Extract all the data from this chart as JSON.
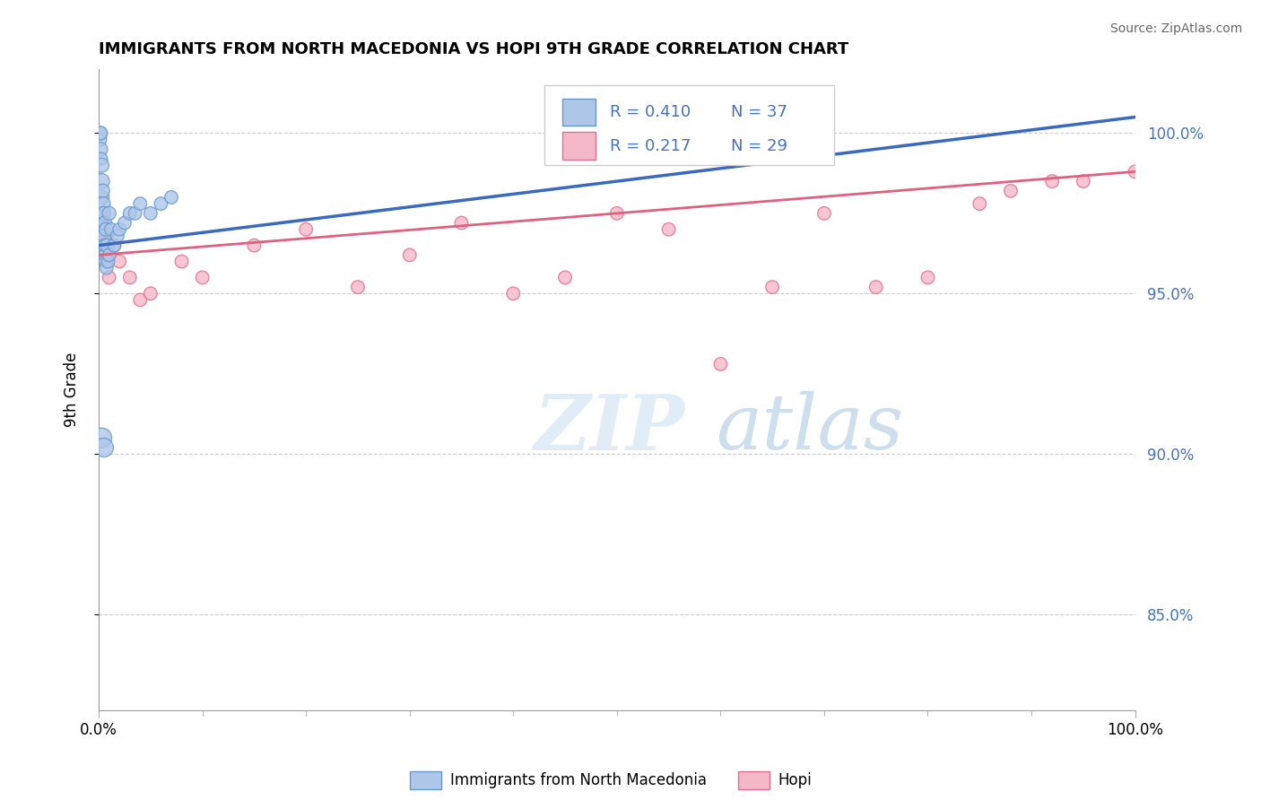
{
  "title": "IMMIGRANTS FROM NORTH MACEDONIA VS HOPI 9TH GRADE CORRELATION CHART",
  "source": "Source: ZipAtlas.com",
  "ylabel": "9th Grade",
  "watermark_zip": "ZIP",
  "watermark_atlas": "atlas",
  "legend_r1": "R = 0.410",
  "legend_n1": "N = 37",
  "legend_r2": "R = 0.217",
  "legend_n2": "N = 29",
  "xmin": 0.0,
  "xmax": 100.0,
  "ymin": 82.0,
  "ymax": 102.0,
  "yticks": [
    85.0,
    90.0,
    95.0,
    100.0
  ],
  "ytick_labels": [
    "85.0%",
    "90.0%",
    "95.0%",
    "100.0%"
  ],
  "blue_color": "#aec6e8",
  "blue_edge": "#6699cc",
  "blue_line_color": "#3a6abf",
  "pink_color": "#f5b8c8",
  "pink_edge": "#e07090",
  "pink_line_color": "#e06080",
  "blue_x": [
    0.1,
    0.15,
    0.2,
    0.2,
    0.25,
    0.3,
    0.3,
    0.35,
    0.4,
    0.4,
    0.45,
    0.5,
    0.5,
    0.55,
    0.6,
    0.6,
    0.65,
    0.7,
    0.7,
    0.75,
    0.8,
    0.9,
    1.0,
    1.0,
    1.2,
    1.5,
    1.8,
    2.0,
    2.5,
    3.0,
    3.5,
    4.0,
    5.0,
    6.0,
    7.0,
    0.3,
    0.5
  ],
  "blue_y": [
    99.8,
    100.0,
    99.5,
    100.0,
    99.2,
    98.5,
    99.0,
    98.0,
    97.5,
    98.2,
    97.8,
    97.0,
    97.5,
    96.8,
    96.5,
    97.2,
    96.2,
    96.0,
    97.0,
    95.8,
    96.5,
    96.0,
    97.5,
    96.2,
    97.0,
    96.5,
    96.8,
    97.0,
    97.2,
    97.5,
    97.5,
    97.8,
    97.5,
    97.8,
    98.0,
    90.5,
    90.2
  ],
  "blue_sizes": [
    120,
    100,
    120,
    120,
    100,
    150,
    130,
    120,
    130,
    120,
    120,
    130,
    120,
    120,
    120,
    120,
    110,
    120,
    120,
    110,
    120,
    110,
    120,
    110,
    110,
    110,
    110,
    110,
    110,
    110,
    110,
    110,
    110,
    110,
    110,
    250,
    230
  ],
  "pink_x": [
    0.3,
    0.8,
    1.0,
    1.5,
    2.0,
    3.0,
    4.0,
    5.0,
    8.0,
    10.0,
    15.0,
    20.0,
    25.0,
    30.0,
    35.0,
    40.0,
    45.0,
    50.0,
    55.0,
    60.0,
    65.0,
    70.0,
    75.0,
    80.0,
    85.0,
    88.0,
    92.0,
    95.0,
    100.0
  ],
  "pink_y": [
    97.2,
    96.8,
    95.5,
    96.5,
    96.0,
    95.5,
    94.8,
    95.0,
    96.0,
    95.5,
    96.5,
    97.0,
    95.2,
    96.2,
    97.2,
    95.0,
    95.5,
    97.5,
    97.0,
    92.8,
    95.2,
    97.5,
    95.2,
    95.5,
    97.8,
    98.2,
    98.5,
    98.5,
    98.8
  ],
  "pink_sizes": [
    110,
    110,
    110,
    110,
    110,
    110,
    110,
    110,
    110,
    110,
    110,
    110,
    110,
    110,
    110,
    110,
    110,
    110,
    110,
    110,
    110,
    110,
    110,
    110,
    110,
    110,
    110,
    110,
    110
  ],
  "blue_line_x": [
    0.0,
    100.0
  ],
  "blue_line_y": [
    96.5,
    100.5
  ],
  "pink_line_x": [
    0.0,
    100.0
  ],
  "pink_line_y": [
    96.2,
    98.8
  ]
}
